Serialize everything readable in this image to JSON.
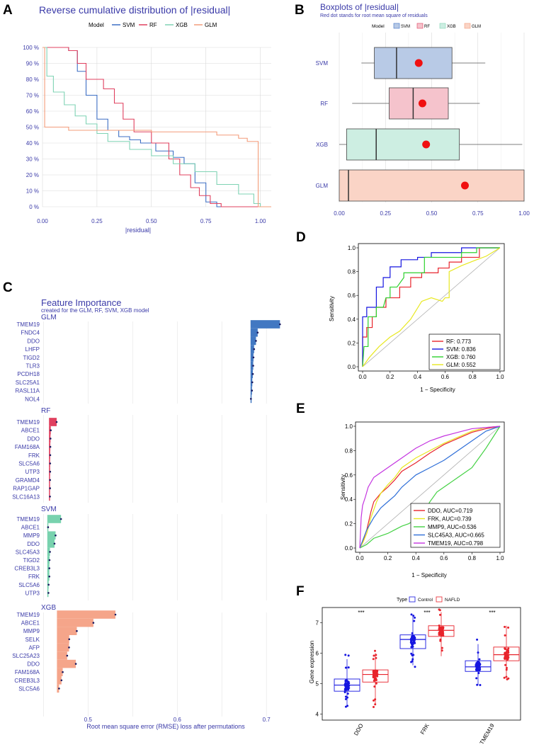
{
  "colors": {
    "svm": "#3d6fc4",
    "rf": "#e0405f",
    "xgb": "#7fd3b4",
    "glm": "#f39c7a",
    "title": "#3a3aa8"
  },
  "chart_data": [
    {
      "id": "A",
      "panel_label": "A",
      "type": "line",
      "title": "Reverse cumulative distribution of |residual|",
      "xlabel": "|residual|",
      "ylabel": "",
      "legend_title": "Model",
      "xlim": [
        0,
        1.05
      ],
      "ylim": [
        0,
        100
      ],
      "x_ticks": [
        "0.00",
        "0.25",
        "0.50",
        "0.75",
        "1.00"
      ],
      "y_ticks": [
        "0 %",
        "10 %",
        "20 %",
        "30 %",
        "40 %",
        "50 %",
        "60 %",
        "70 %",
        "80 %",
        "90 %",
        "100 %"
      ],
      "series": [
        {
          "name": "SVM",
          "x": [
            0,
            0.12,
            0.16,
            0.2,
            0.25,
            0.3,
            0.35,
            0.4,
            0.45,
            0.52,
            0.6,
            0.65,
            0.7,
            0.75,
            0.8,
            1.0
          ],
          "y": [
            100,
            98,
            85,
            70,
            55,
            48,
            44,
            42,
            40,
            35,
            31,
            27,
            15,
            3,
            0,
            0
          ]
        },
        {
          "name": "RF",
          "x": [
            0,
            0.12,
            0.16,
            0.2,
            0.28,
            0.33,
            0.37,
            0.42,
            0.5,
            0.58,
            0.63,
            0.68,
            0.72,
            0.77,
            0.82,
            1.0
          ],
          "y": [
            100,
            98,
            90,
            80,
            74,
            65,
            55,
            47,
            40,
            30,
            20,
            12,
            7,
            2,
            0,
            0
          ]
        },
        {
          "name": "XGB",
          "x": [
            0,
            0.02,
            0.05,
            0.1,
            0.15,
            0.2,
            0.25,
            0.3,
            0.4,
            0.5,
            0.6,
            0.7,
            0.8,
            0.9,
            0.97,
            1.0
          ],
          "y": [
            100,
            82,
            72,
            64,
            57,
            52,
            46,
            41,
            36,
            32,
            27,
            22,
            14,
            8,
            2,
            0
          ]
        },
        {
          "name": "GLM",
          "x": [
            0,
            0.01,
            0.01,
            0.12,
            0.5,
            0.8,
            0.9,
            0.94,
            0.99,
            0.99,
            1.05
          ],
          "y": [
            100,
            100,
            50,
            48,
            47,
            45,
            43,
            41,
            40,
            0,
            0
          ]
        }
      ]
    },
    {
      "id": "B",
      "panel_label": "B",
      "type": "box",
      "title": "Boxplots of |residual|",
      "subtitle": "Red dot stands for root mean square of residuals",
      "legend_title": "Model",
      "xlim": [
        0,
        1
      ],
      "x_ticks": [
        "0.00",
        "0.25",
        "0.50",
        "0.75",
        "1.00"
      ],
      "categories": [
        "SVM",
        "RF",
        "XGB",
        "GLM"
      ],
      "boxes": [
        {
          "name": "SVM",
          "lo": 0.12,
          "q1": 0.19,
          "median": 0.31,
          "q3": 0.61,
          "hi": 0.79,
          "rmse": 0.43
        },
        {
          "name": "RF",
          "lo": 0.07,
          "q1": 0.27,
          "median": 0.4,
          "q3": 0.59,
          "hi": 0.76,
          "rmse": 0.45
        },
        {
          "name": "XGB",
          "lo": 0.0,
          "q1": 0.04,
          "median": 0.2,
          "q3": 0.65,
          "hi": 0.99,
          "rmse": 0.47
        },
        {
          "name": "GLM",
          "lo": 0.0,
          "q1": 0.0,
          "median": 0.05,
          "q3": 1.0,
          "hi": 1.0,
          "rmse": 0.68
        }
      ]
    },
    {
      "id": "C",
      "panel_label": "C",
      "type": "bar",
      "title": "Feature Importance",
      "subtitle": "created for the GLM, RF, SVM, XGB model",
      "xlabel": "Root mean square error (RMSE) loss after permutations",
      "x_ticks": [
        "0.5",
        "0.6",
        "0.7"
      ],
      "xlim": [
        0.4505,
        0.7205
      ],
      "groups": [
        {
          "name": "GLM",
          "baseline": 0.6822,
          "features": [
            "TMEM19",
            "FNDC4",
            "DDO",
            "LHFP",
            "TIGD2",
            "TLR3",
            "PCDH18",
            "SLC25A1",
            "RASL11A",
            "NOL4"
          ],
          "values": [
            0.7152,
            0.6902,
            0.6883,
            0.6862,
            0.6855,
            0.6852,
            0.6848,
            0.6842,
            0.6838,
            0.6826
          ]
        },
        {
          "name": "RF",
          "baseline": 0.4562,
          "features": [
            "TMEM19",
            "ABCE1",
            "DDO",
            "FAM168A",
            "FRK",
            "SLC5A6",
            "UTP3",
            "GRAMD4",
            "RAP1GAP",
            "SLC16A13"
          ],
          "values": [
            0.4648,
            0.4582,
            0.4579,
            0.4577,
            0.4576,
            0.4575,
            0.4575,
            0.4574,
            0.4574,
            0.4573
          ]
        },
        {
          "name": "SVM",
          "baseline": 0.4543,
          "features": [
            "TMEM19",
            "ABCE1",
            "MMP9",
            "DDO",
            "SLC45A3",
            "TIGD2",
            "CREB3L3",
            "FRK",
            "SLC5A6",
            "UTP3"
          ],
          "values": [
            0.4697,
            0.4552,
            0.4636,
            0.4624,
            0.4573,
            0.4568,
            0.4566,
            0.4566,
            0.4558,
            0.4556
          ]
        },
        {
          "name": "XGB",
          "baseline": 0.4651,
          "features": [
            "TMEM19",
            "ABCE1",
            "MMP9",
            "SELK",
            "AFP",
            "SLC25A23",
            "DDO",
            "FAM168A",
            "CREB3L3",
            "SLC5A6"
          ],
          "values": [
            0.5307,
            0.506,
            0.4874,
            0.4789,
            0.4787,
            0.4766,
            0.4863,
            0.4716,
            0.4702,
            0.4675
          ]
        }
      ]
    },
    {
      "id": "D",
      "panel_label": "D",
      "type": "line",
      "title": "",
      "xlabel": "1 − Specificity",
      "ylabel": "Sensitivity",
      "xlim": [
        0,
        1
      ],
      "ylim": [
        0,
        1
      ],
      "x_ticks": [
        "0.0",
        "0.2",
        "0.4",
        "0.6",
        "0.8",
        "1.0"
      ],
      "y_ticks": [
        "0.0",
        "0.2",
        "0.4",
        "0.6",
        "0.8",
        "1.0"
      ],
      "legend_position": "bottom-right",
      "series": [
        {
          "name": "RF: 0.773",
          "color": "#e8242c",
          "x": [
            0,
            0,
            0.03,
            0.03,
            0.07,
            0.07,
            0.1,
            0.1,
            0.17,
            0.17,
            0.27,
            0.27,
            0.35,
            0.35,
            0.43,
            0.43,
            0.55,
            0.55,
            0.63,
            0.63,
            0.72,
            0.72,
            0.85,
            0.85,
            1.0
          ],
          "y": [
            0,
            0.25,
            0.25,
            0.33,
            0.33,
            0.42,
            0.42,
            0.5,
            0.5,
            0.58,
            0.58,
            0.67,
            0.67,
            0.75,
            0.75,
            0.79,
            0.79,
            0.83,
            0.83,
            0.88,
            0.88,
            0.92,
            0.92,
            1.0,
            1.0
          ]
        },
        {
          "name": "SVM: 0.836",
          "color": "#1515e0",
          "x": [
            0,
            0,
            0.03,
            0.03,
            0.1,
            0.1,
            0.15,
            0.15,
            0.2,
            0.2,
            0.28,
            0.28,
            0.4,
            0.4,
            0.5,
            0.5,
            0.55,
            0.55,
            0.72,
            0.72,
            0.8,
            0.8,
            1.0
          ],
          "y": [
            0,
            0.42,
            0.42,
            0.5,
            0.5,
            0.67,
            0.67,
            0.75,
            0.75,
            0.84,
            0.84,
            0.9,
            0.9,
            0.92,
            0.92,
            0.96,
            0.96,
            0.96,
            0.96,
            1.0,
            1.0,
            1.0,
            1.0
          ]
        },
        {
          "name": "XGB: 0.760",
          "color": "#2ed12e",
          "x": [
            0,
            0.01,
            0.04,
            0.04,
            0.1,
            0.1,
            0.15,
            0.17,
            0.2,
            0.2,
            0.25,
            0.3,
            0.3,
            0.45,
            0.45,
            0.55,
            0.55,
            0.72,
            0.72,
            0.83,
            0.83,
            1.0
          ],
          "y": [
            0,
            0.17,
            0.17,
            0.42,
            0.42,
            0.5,
            0.5,
            0.58,
            0.58,
            0.67,
            0.67,
            0.75,
            0.79,
            0.79,
            0.92,
            0.92,
            0.92,
            0.92,
            0.96,
            0.96,
            1.0,
            1.0
          ]
        },
        {
          "name": "GLM: 0.552",
          "color": "#e8e820",
          "x": [
            0,
            0.05,
            0.12,
            0.2,
            0.27,
            0.35,
            0.43,
            0.5,
            0.58,
            0.6,
            0.63,
            0.63,
            0.72,
            0.83,
            0.9,
            1.0
          ],
          "y": [
            0,
            0.08,
            0.17,
            0.25,
            0.3,
            0.4,
            0.55,
            0.58,
            0.55,
            0.58,
            0.58,
            0.8,
            0.85,
            0.9,
            0.93,
            1.0
          ]
        }
      ]
    },
    {
      "id": "E",
      "panel_label": "E",
      "type": "line",
      "title": "",
      "xlabel": "1 − Specificity",
      "ylabel": "Sensitivity",
      "xlim": [
        0,
        1
      ],
      "ylim": [
        0,
        1
      ],
      "x_ticks": [
        "0.0",
        "0.2",
        "0.4",
        "0.6",
        "0.8",
        "1.0"
      ],
      "y_ticks": [
        "0.0",
        "0.2",
        "0.4",
        "0.6",
        "0.8",
        "1.0"
      ],
      "legend_position": "bottom-right",
      "series": [
        {
          "name": "DDO, AUC=0.719",
          "color": "#e8242c",
          "x": [
            0,
            0.02,
            0.05,
            0.08,
            0.1,
            0.15,
            0.2,
            0.25,
            0.3,
            0.4,
            0.5,
            0.6,
            0.7,
            0.8,
            0.9,
            1.0
          ],
          "y": [
            0,
            0.05,
            0.15,
            0.3,
            0.38,
            0.45,
            0.5,
            0.56,
            0.63,
            0.7,
            0.78,
            0.85,
            0.9,
            0.95,
            0.98,
            1.0
          ]
        },
        {
          "name": "FRK, AUC=0.739",
          "color": "#e8e820",
          "x": [
            0,
            0.02,
            0.05,
            0.08,
            0.12,
            0.15,
            0.2,
            0.25,
            0.3,
            0.4,
            0.5,
            0.6,
            0.7,
            0.8,
            0.9,
            1.0
          ],
          "y": [
            0,
            0.04,
            0.12,
            0.25,
            0.38,
            0.45,
            0.52,
            0.58,
            0.66,
            0.74,
            0.8,
            0.86,
            0.91,
            0.96,
            0.99,
            1.0
          ]
        },
        {
          "name": "MMP9, AUC=0.536",
          "color": "#43d143",
          "x": [
            0,
            0.05,
            0.1,
            0.15,
            0.2,
            0.25,
            0.3,
            0.35,
            0.4,
            0.45,
            0.5,
            0.55,
            0.6,
            0.7,
            0.8,
            0.9,
            1.0
          ],
          "y": [
            0,
            0.03,
            0.08,
            0.1,
            0.12,
            0.15,
            0.18,
            0.2,
            0.24,
            0.28,
            0.38,
            0.46,
            0.5,
            0.58,
            0.66,
            0.82,
            1.0
          ]
        },
        {
          "name": "SLC45A3, AUC=0.665",
          "color": "#2f6fd8",
          "x": [
            0,
            0.02,
            0.05,
            0.1,
            0.15,
            0.2,
            0.25,
            0.3,
            0.35,
            0.4,
            0.5,
            0.6,
            0.7,
            0.8,
            0.9,
            1.0
          ],
          "y": [
            0,
            0.06,
            0.15,
            0.25,
            0.33,
            0.38,
            0.43,
            0.5,
            0.55,
            0.6,
            0.66,
            0.72,
            0.8,
            0.88,
            0.96,
            1.0
          ]
        },
        {
          "name": "TMEM19, AUC=0.798",
          "color": "#c434e0",
          "x": [
            0,
            0.01,
            0.02,
            0.04,
            0.06,
            0.1,
            0.15,
            0.2,
            0.25,
            0.3,
            0.4,
            0.5,
            0.6,
            0.7,
            0.8,
            0.9,
            1.0
          ],
          "y": [
            0,
            0.25,
            0.35,
            0.42,
            0.5,
            0.58,
            0.62,
            0.66,
            0.7,
            0.74,
            0.82,
            0.88,
            0.92,
            0.95,
            0.98,
            0.99,
            1.0
          ]
        }
      ]
    },
    {
      "id": "F",
      "panel_label": "F",
      "type": "box",
      "title": "",
      "legend_title": "Type",
      "ylabel": "Gene expression",
      "ylim": [
        3.8,
        7.5
      ],
      "y_ticks": [
        "4",
        "5",
        "6",
        "7"
      ],
      "categories": [
        "DDO",
        "FRK",
        "TMEM19"
      ],
      "significance": [
        "***",
        "***",
        "***"
      ],
      "series": [
        {
          "name": "Control",
          "color": "#1515e0",
          "boxes": [
            {
              "lo": 4.3,
              "q1": 4.75,
              "median": 4.95,
              "q3": 5.15,
              "hi": 5.8
            },
            {
              "lo": 5.6,
              "q1": 6.15,
              "median": 6.45,
              "q3": 6.6,
              "hi": 7.2
            },
            {
              "lo": 4.95,
              "q1": 5.4,
              "median": 5.55,
              "q3": 5.75,
              "hi": 6.3
            }
          ]
        },
        {
          "name": "NAFLD",
          "color": "#e8242c",
          "boxes": [
            {
              "lo": 4.3,
              "q1": 5.05,
              "median": 5.3,
              "q3": 5.45,
              "hi": 6.0
            },
            {
              "lo": 5.9,
              "q1": 6.55,
              "median": 6.75,
              "q3": 6.9,
              "hi": 7.35
            },
            {
              "lo": 5.2,
              "q1": 5.75,
              "median": 5.95,
              "q3": 6.2,
              "hi": 6.9
            }
          ]
        }
      ]
    }
  ]
}
